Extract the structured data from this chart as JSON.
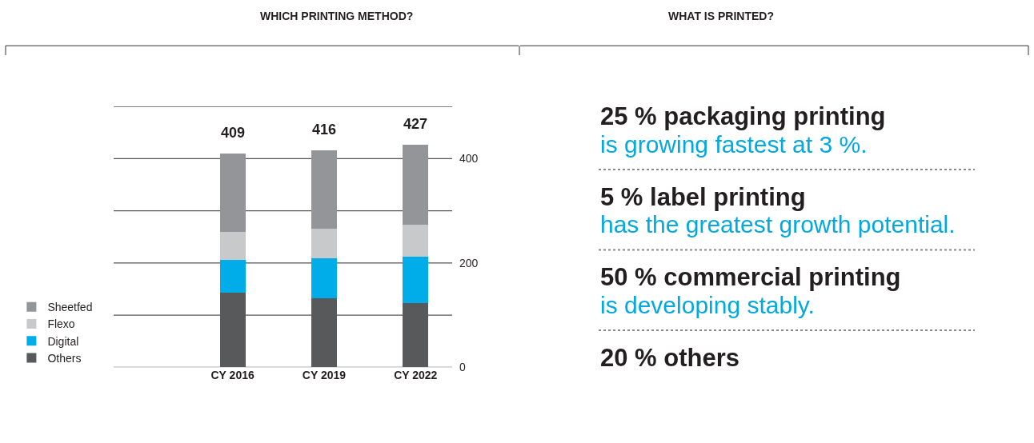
{
  "chart_data": [
    {
      "type": "bar",
      "title": "WHICH PRINTING METHOD?",
      "stacked": true,
      "categories": [
        "CY 2016",
        "CY 2019",
        "CY 2022"
      ],
      "series": [
        {
          "name": "Others",
          "color": "#58595b",
          "values": [
            143,
            132,
            123
          ]
        },
        {
          "name": "Digital",
          "color": "#00ade9",
          "values": [
            63,
            77,
            89
          ]
        },
        {
          "name": "Flexo",
          "color": "#c8c9cb",
          "values": [
            53,
            56,
            62
          ]
        },
        {
          "name": "Sheetfed",
          "color": "#949599",
          "values": [
            150,
            151,
            153
          ]
        }
      ],
      "totals": [
        "409",
        "416",
        "427"
      ],
      "ylim": [
        0,
        500
      ],
      "yticks": [
        0,
        {
          "value": 100,
          "label": null
        },
        200,
        {
          "value": 300,
          "label": null
        },
        400,
        {
          "value": 500,
          "label": null
        }
      ],
      "grid": "y",
      "legend": "bottom left"
    },
    {
      "type": "other",
      "title": "WHAT IS PRINTED?",
      "annotations": [
        "25 % packaging printing",
        "is growing fastest at 3 %.",
        "5 % label printing",
        "has the greatest growth potential.",
        "50 % commercial printing",
        "is developing stably.",
        "20 % others"
      ]
    }
  ]
}
